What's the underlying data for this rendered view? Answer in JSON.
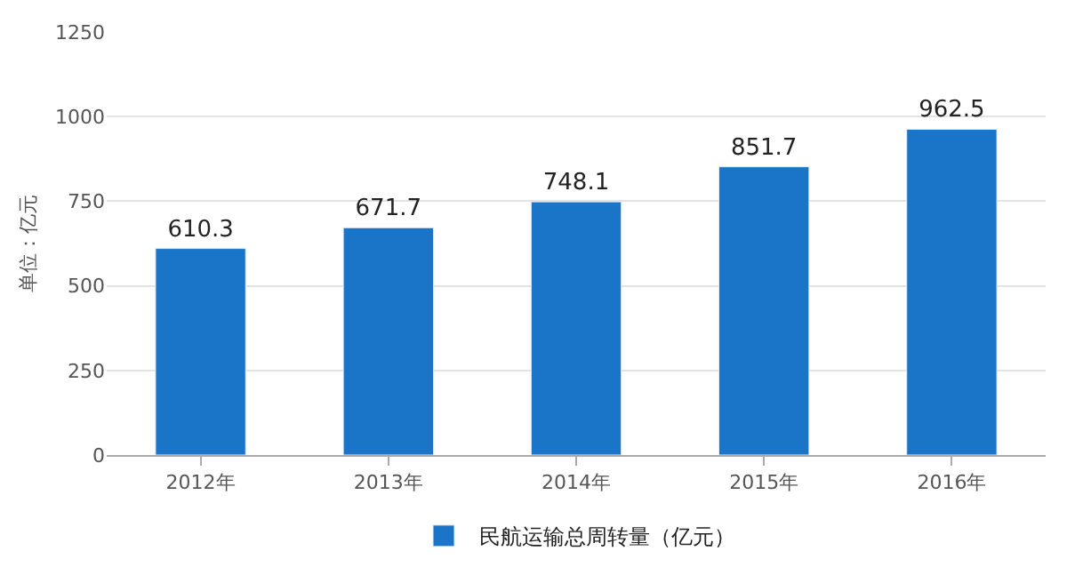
{
  "chart_data": {
    "type": "bar",
    "ylabel": "单位：亿元",
    "categories": [
      "2012年",
      "2013年",
      "2014年",
      "2015年",
      "2016年"
    ],
    "series": [
      {
        "name": "民航运输总周转量（亿元）",
        "color": "#1a74c8",
        "values": [
          610.3,
          671.7,
          748.1,
          851.7,
          962.5
        ]
      }
    ],
    "ylim": [
      0,
      1250
    ],
    "yticks": [
      0,
      250,
      500,
      750,
      1000,
      1250
    ],
    "grid": "y",
    "legend": "bottom",
    "data_labels": true
  }
}
